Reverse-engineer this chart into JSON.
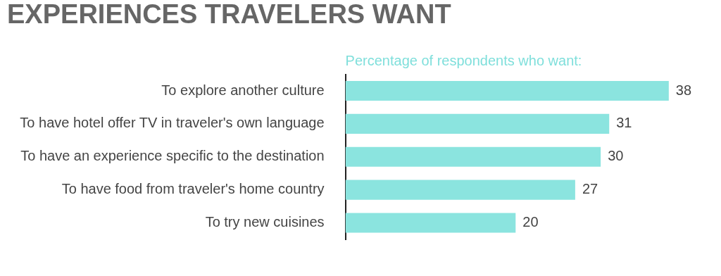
{
  "chart_data": {
    "type": "bar",
    "orientation": "horizontal",
    "title": "EXPERIENCES TRAVELERS WANT",
    "subtitle": "Percentage of respondents who want:",
    "categories": [
      "To explore another culture",
      "To have hotel offer TV in traveler's own language",
      "To have an experience specific to the destination",
      "To have food from traveler's home country",
      "To try new cuisines"
    ],
    "values": [
      38,
      31,
      30,
      27,
      20
    ],
    "color": "#8be4df",
    "data_labels": true,
    "grid": false,
    "legend": false,
    "tick_labels": "y"
  }
}
